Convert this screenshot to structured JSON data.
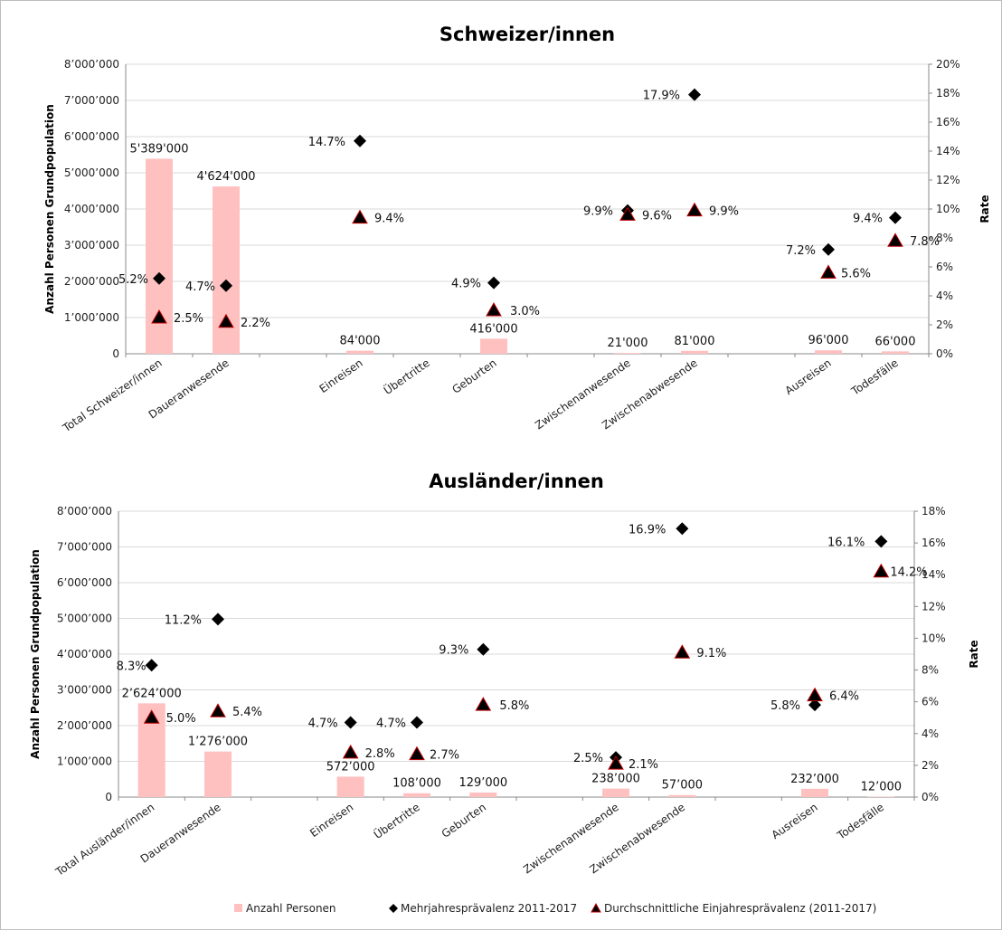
{
  "chart_data": [
    {
      "type": "bar",
      "title": "Schweizer/innen",
      "ylabel": "Anzahl Personen Grundpopulation",
      "y2label": "Rate",
      "ylim": [
        0,
        8000000
      ],
      "y2lim": [
        0,
        20
      ],
      "yticks": [
        "0",
        "1’000’000",
        "2’000’000",
        "3’000’000",
        "4’000’000",
        "5’000’000",
        "6’000’000",
        "7’000’000",
        "8’000’000"
      ],
      "y2ticks": [
        "0%",
        "2%",
        "4%",
        "6%",
        "8%",
        "10%",
        "12%",
        "14%",
        "16%",
        "18%",
        "20%"
      ],
      "categories": [
        "Total Schweizer/innen",
        "Daueranwesende",
        "",
        "Einreisen",
        "Übertritte",
        "Geburten",
        "",
        "Zwischenanwesende",
        "Zwischenabwesende",
        "",
        "Ausreisen",
        "Todesfälle"
      ],
      "series": [
        {
          "name": "Anzahl Personen",
          "kind": "bar",
          "values": [
            5389000,
            4624000,
            null,
            84000,
            null,
            416000,
            null,
            21000,
            81000,
            null,
            96000,
            66000
          ],
          "labels": [
            "5'389'000",
            "4'624'000",
            null,
            "84'000",
            null,
            "416'000",
            null,
            "21'000",
            "81'000",
            null,
            "96'000",
            "66'000"
          ]
        },
        {
          "name": "Mehrjahresprävalenz 2011-2017",
          "kind": "diamond",
          "values": [
            5.2,
            4.7,
            null,
            14.7,
            null,
            4.9,
            null,
            9.9,
            17.9,
            null,
            7.2,
            9.4
          ],
          "labels": [
            "5.2%",
            "4.7%",
            null,
            "14.7%",
            null,
            "4.9%",
            null,
            "9.9%",
            "17.9%",
            null,
            "7.2%",
            "9.4%"
          ]
        },
        {
          "name": "Durchschnittliche Einjahresprävalenz (2011-2017)",
          "kind": "triangle",
          "values": [
            2.5,
            2.2,
            null,
            9.4,
            null,
            3.0,
            null,
            9.6,
            9.9,
            null,
            5.6,
            7.8
          ],
          "labels": [
            "2.5%",
            "2.2%",
            null,
            "9.4%",
            null,
            "3.0%",
            null,
            "9.6%",
            "9.9%",
            null,
            "5.6%",
            "7.8%"
          ]
        }
      ]
    },
    {
      "type": "bar",
      "title": "Ausländer/innen",
      "ylabel": "Anzahl Personen Grundpopulation",
      "y2label": "Rate",
      "ylim": [
        0,
        8000000
      ],
      "y2lim": [
        0,
        18
      ],
      "yticks": [
        "0",
        "1’000’000",
        "2’000’000",
        "3’000’000",
        "4’000’000",
        "5’000’000",
        "6’000’000",
        "7’000’000",
        "8’000’000"
      ],
      "y2ticks": [
        "0%",
        "2%",
        "4%",
        "6%",
        "8%",
        "10%",
        "12%",
        "14%",
        "16%",
        "18%"
      ],
      "categories": [
        "Total Ausländer/innen",
        "Daueranwesende",
        "",
        "Einreisen",
        "Übertritte",
        "Geburten",
        "",
        "Zwischenanwesende",
        "Zwischenabwesende",
        "",
        "Ausreisen",
        "Todesfälle"
      ],
      "series": [
        {
          "name": "Anzahl Personen",
          "kind": "bar",
          "values": [
            2624000,
            1276000,
            null,
            572000,
            108000,
            129000,
            null,
            238000,
            57000,
            null,
            232000,
            12000
          ],
          "labels": [
            "2’624’000",
            "1’276’000",
            null,
            "572’000",
            "108’000",
            "129’000",
            null,
            "238’000",
            "57’000",
            null,
            "232’000",
            "12’000"
          ]
        },
        {
          "name": "Mehrjahresprävalenz 2011-2017",
          "kind": "diamond",
          "values": [
            8.3,
            11.2,
            null,
            4.7,
            4.7,
            9.3,
            null,
            2.5,
            16.9,
            null,
            5.8,
            16.1
          ],
          "labels": [
            "8.3%",
            "11.2%",
            null,
            "4.7%",
            "4.7%",
            "9.3%",
            null,
            "2.5%",
            "16.9%",
            null,
            "5.8%",
            "16.1%"
          ]
        },
        {
          "name": "Durchschnittliche Einjahresprävalenz (2011-2017)",
          "kind": "triangle",
          "values": [
            5.0,
            5.4,
            null,
            2.8,
            2.7,
            5.8,
            null,
            2.1,
            9.1,
            null,
            6.4,
            14.2
          ],
          "labels": [
            "5.0%",
            "5.4%",
            null,
            "2.8%",
            "2.7%",
            "5.8%",
            null,
            "2.1%",
            "9.1%",
            null,
            "6.4%",
            "14.2%"
          ]
        }
      ]
    }
  ],
  "legend": {
    "items": [
      "Anzahl Personen",
      "Mehrjahresprävalenz 2011-2017",
      "Durchschnittliche Einjahresprävalenz (2011-2017)"
    ],
    "placement": "bottom"
  },
  "colors": {
    "bar": "#ffc0c0",
    "diamond": "#000000",
    "triangle": "#000000",
    "triangle_edge": "#c00000",
    "grid": "#d9d9d9"
  }
}
